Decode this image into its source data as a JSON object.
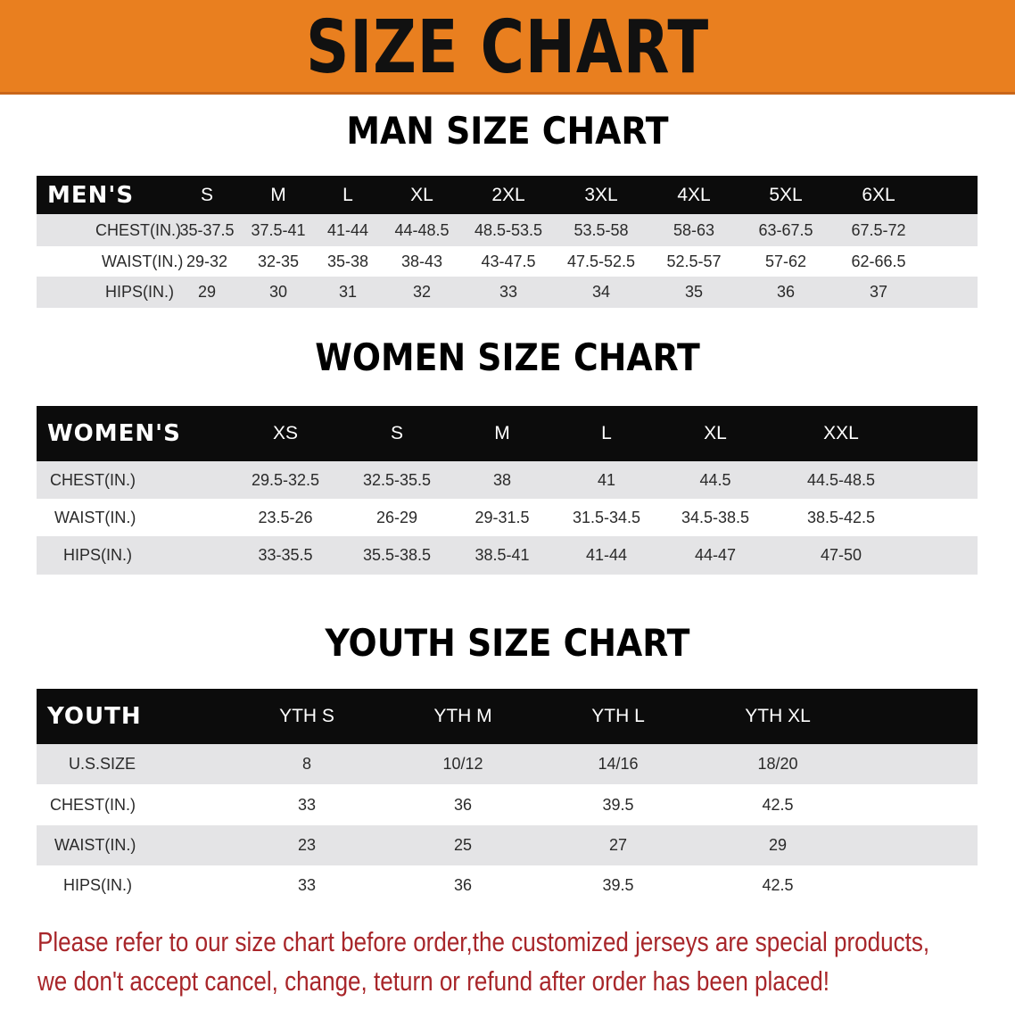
{
  "banner": {
    "title": "SIZE CHART",
    "color": "#e97f1f"
  },
  "men": {
    "title": "MAN SIZE CHART",
    "header": [
      "MEN'S",
      "S",
      "M",
      "L",
      "XL",
      "2XL",
      "3XL",
      "4XL",
      "5XL",
      "6XL"
    ],
    "rows": [
      [
        "CHEST(IN.)",
        "35-37.5",
        "37.5-41",
        "41-44",
        "44-48.5",
        "48.5-53.5",
        "53.5-58",
        "58-63",
        "63-67.5",
        "67.5-72"
      ],
      [
        "WAIST(IN.)",
        "29-32",
        "32-35",
        "35-38",
        "38-43",
        "43-47.5",
        "47.5-52.5",
        "52.5-57",
        "57-62",
        "62-66.5"
      ],
      [
        "HIPS(IN.)",
        "29",
        "30",
        "31",
        "32",
        "33",
        "34",
        "35",
        "36",
        "37"
      ]
    ]
  },
  "women": {
    "title": "WOMEN SIZE CHART",
    "header": [
      "WOMEN'S",
      "XS",
      "S",
      "M",
      "L",
      "XL",
      "XXL"
    ],
    "rows": [
      [
        "CHEST(IN.)",
        "29.5-32.5",
        "32.5-35.5",
        "38",
        "41",
        "44.5",
        "44.5-48.5"
      ],
      [
        "WAIST(IN.)",
        "23.5-26",
        "26-29",
        "29-31.5",
        "31.5-34.5",
        "34.5-38.5",
        "38.5-42.5"
      ],
      [
        "HIPS(IN.)",
        "33-35.5",
        "35.5-38.5",
        "38.5-41",
        "41-44",
        "44-47",
        "47-50"
      ]
    ]
  },
  "youth": {
    "title": "YOUTH SIZE CHART",
    "header": [
      "YOUTH",
      "YTH S",
      "YTH M",
      "YTH L",
      "YTH XL"
    ],
    "rows": [
      [
        "U.S.SIZE",
        "8",
        "10/12",
        "14/16",
        "18/20"
      ],
      [
        "CHEST(IN.)",
        "33",
        "36",
        "39.5",
        "42.5"
      ],
      [
        "WAIST(IN.)",
        "23",
        "25",
        "27",
        "29"
      ],
      [
        "HIPS(IN.)",
        "33",
        "36",
        "39.5",
        "42.5"
      ]
    ]
  },
  "notice": {
    "line1": "Please refer to our size chart before order,the customized jerseys are special products,",
    "line2": "we don't accept cancel, change, teturn or refund after order has been placed!",
    "color": "#a8262a"
  }
}
